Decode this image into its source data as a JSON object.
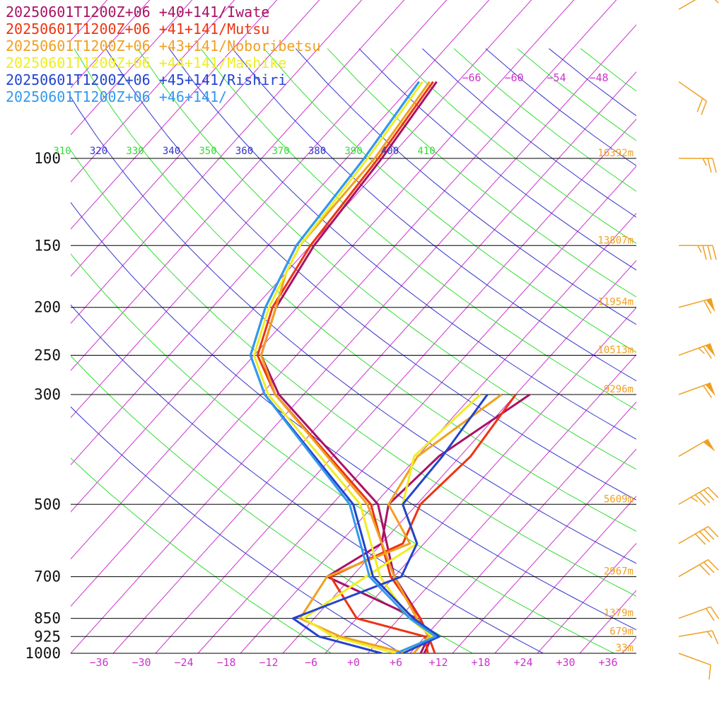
{
  "chart_data": {
    "type": "line",
    "diagram": "skew-T log-p",
    "legend_placement": "top-left",
    "x_axis": {
      "ticks": [
        -36,
        -30,
        -24,
        -18,
        -12,
        -6,
        0,
        6,
        12,
        18,
        24,
        30,
        36
      ],
      "tick_labels": [
        "−36",
        "−30",
        "−24",
        "−18",
        "−12",
        "−6",
        "+0",
        "+6",
        "+12",
        "+18",
        "+24",
        "+30",
        "+36"
      ],
      "range": [
        -40,
        40
      ]
    },
    "y_axis": {
      "scale": "log",
      "range": [
        1000,
        100
      ],
      "levels": [
        100,
        150,
        200,
        250,
        300,
        500,
        700,
        850,
        925,
        1000
      ],
      "level_labels": [
        "100",
        "150",
        "200",
        "250",
        "300",
        "500",
        "700",
        "850",
        "925",
        "1000"
      ]
    },
    "heights": [
      {
        "p": 100,
        "label": "16392m"
      },
      {
        "p": 150,
        "label": "13807m"
      },
      {
        "p": 200,
        "label": "11954m"
      },
      {
        "p": 250,
        "label": "10513m"
      },
      {
        "p": 300,
        "label": "9296m"
      },
      {
        "p": 500,
        "label": "5609m"
      },
      {
        "p": 700,
        "label": "2967m"
      },
      {
        "p": 850,
        "label": "1379m"
      },
      {
        "p": 925,
        "label": "679m"
      },
      {
        "p": 1000,
        "label": "33m"
      }
    ],
    "upper_isotherm_labels": [
      "−66",
      "−60",
      "−54",
      "−48"
    ],
    "theta_labels": [
      {
        "value": 310,
        "label": "310",
        "color": "#33dd33"
      },
      {
        "value": 320,
        "label": "320",
        "color": "#3333cc"
      },
      {
        "value": 330,
        "label": "330",
        "color": "#33dd33"
      },
      {
        "value": 340,
        "label": "340",
        "color": "#3333cc"
      },
      {
        "value": 350,
        "label": "350",
        "color": "#33dd33"
      },
      {
        "value": 360,
        "label": "360",
        "color": "#3333cc"
      },
      {
        "value": 370,
        "label": "370",
        "color": "#33dd33"
      },
      {
        "value": 380,
        "label": "380",
        "color": "#3333cc"
      },
      {
        "value": 390,
        "label": "390",
        "color": "#33dd33"
      },
      {
        "value": 400,
        "label": "400",
        "color": "#3333cc"
      },
      {
        "value": 410,
        "label": "410",
        "color": "#33dd33"
      }
    ],
    "series": [
      {
        "name": "20250601T1200Z+06 +40+141/Iwate",
        "color": "#aa1166",
        "temperature": [
          [
            1000,
            9.5
          ],
          [
            925,
            8.5
          ],
          [
            850,
            5.0
          ],
          [
            700,
            -4.0
          ],
          [
            500,
            -15.5
          ],
          [
            300,
            -43.5
          ],
          [
            250,
            -51.0
          ],
          [
            200,
            -55.0
          ],
          [
            150,
            -57.5
          ],
          [
            100,
            -59.0
          ],
          [
            70,
            -61.0
          ]
        ],
        "dewpoint": [
          [
            1000,
            10.0
          ],
          [
            925,
            9.0
          ],
          [
            850,
            4.5
          ],
          [
            700,
            -13.5
          ],
          [
            600,
            -10.0
          ],
          [
            500,
            -14.0
          ],
          [
            400,
            -13.0
          ],
          [
            300,
            -8.0
          ]
        ]
      },
      {
        "name": "20250601T1200Z+06 +41+141/Mutsu",
        "color": "#ee3311",
        "temperature": [
          [
            1000,
            11.5
          ],
          [
            925,
            8.5
          ],
          [
            850,
            5.0
          ],
          [
            700,
            -4.5
          ],
          [
            500,
            -16.5
          ],
          [
            300,
            -44.0
          ],
          [
            250,
            -51.5
          ],
          [
            200,
            -55.5
          ],
          [
            150,
            -58.0
          ],
          [
            100,
            -59.5
          ],
          [
            70,
            -61.5
          ]
        ],
        "dewpoint": [
          [
            1000,
            10.5
          ],
          [
            925,
            8.0
          ],
          [
            850,
            -4.0
          ],
          [
            700,
            -13.0
          ],
          [
            600,
            -7.0
          ],
          [
            500,
            -9.5
          ],
          [
            400,
            -8.5
          ],
          [
            300,
            -10.0
          ]
        ]
      },
      {
        "name": "20250601T1200Z+06 +43+141/Noboribetsu",
        "color": "#f0a020",
        "temperature": [
          [
            1000,
            8.5
          ],
          [
            925,
            8.5
          ],
          [
            850,
            4.5
          ],
          [
            700,
            -4.0
          ],
          [
            500,
            -17.0
          ],
          [
            300,
            -44.0
          ],
          [
            250,
            -51.0
          ],
          [
            200,
            -55.0
          ],
          [
            170,
            -58.0
          ],
          [
            150,
            -59.5
          ],
          [
            100,
            -60.0
          ],
          [
            70,
            -62.0
          ]
        ],
        "dewpoint": [
          [
            1000,
            7.5
          ],
          [
            925,
            -4.0
          ],
          [
            850,
            -12.0
          ],
          [
            700,
            -13.5
          ],
          [
            600,
            -6.0
          ],
          [
            500,
            -14.0
          ],
          [
            400,
            -16.0
          ],
          [
            300,
            -12.0
          ]
        ]
      },
      {
        "name": "20250601T1200Z+06 +44+141/Mashike",
        "color": "#eeee22",
        "temperature": [
          [
            1000,
            7.0
          ],
          [
            925,
            9.0
          ],
          [
            850,
            3.5
          ],
          [
            700,
            -6.0
          ],
          [
            500,
            -18.0
          ],
          [
            300,
            -45.0
          ],
          [
            250,
            -52.0
          ],
          [
            200,
            -56.0
          ],
          [
            150,
            -59.5
          ],
          [
            100,
            -61.0
          ],
          [
            70,
            -63.0
          ]
        ],
        "dewpoint": [
          [
            1000,
            6.0
          ],
          [
            925,
            -5.0
          ],
          [
            850,
            -11.5
          ],
          [
            700,
            -8.0
          ],
          [
            600,
            -5.0
          ],
          [
            500,
            -12.0
          ],
          [
            400,
            -16.5
          ],
          [
            300,
            -15.0
          ]
        ]
      },
      {
        "name": "20250601T1200Z+06 +45+141/Rishiri",
        "color": "#2244cc",
        "temperature": [
          [
            1000,
            7.0
          ],
          [
            925,
            10.0
          ],
          [
            850,
            4.0
          ],
          [
            700,
            -7.0
          ],
          [
            500,
            -19.0
          ],
          [
            300,
            -45.5
          ],
          [
            250,
            -52.5
          ],
          [
            200,
            -56.5
          ],
          [
            150,
            -60.0
          ],
          [
            100,
            -61.5
          ],
          [
            70,
            -63.5
          ]
        ],
        "dewpoint": [
          [
            1000,
            4.0
          ],
          [
            925,
            -7.0
          ],
          [
            850,
            -13.0
          ],
          [
            700,
            -3.0
          ],
          [
            600,
            -5.0
          ],
          [
            500,
            -12.0
          ],
          [
            400,
            -12.5
          ],
          [
            300,
            -14.0
          ]
        ]
      },
      {
        "name": "20250601T1200Z+06 +46+141/",
        "color": "#3399ee",
        "temperature": [
          [
            1000,
            6.0
          ],
          [
            925,
            9.5
          ],
          [
            850,
            3.5
          ],
          [
            700,
            -7.5
          ],
          [
            500,
            -19.5
          ],
          [
            300,
            -45.5
          ],
          [
            250,
            -52.5
          ],
          [
            200,
            -56.5
          ],
          [
            150,
            -60.0
          ],
          [
            100,
            -61.5
          ],
          [
            70,
            -63.5
          ]
        ],
        "dewpoint": []
      }
    ],
    "wind_barbs": [
      {
        "p": 1000,
        "dir": 290,
        "spd": 10
      },
      {
        "p": 925,
        "dir": 260,
        "spd": 15
      },
      {
        "p": 850,
        "dir": 250,
        "spd": 20
      },
      {
        "p": 700,
        "dir": 240,
        "spd": 30
      },
      {
        "p": 600,
        "dir": 240,
        "spd": 40
      },
      {
        "p": 500,
        "dir": 240,
        "spd": 45
      },
      {
        "p": 400,
        "dir": 240,
        "spd": 50
      },
      {
        "p": 300,
        "dir": 250,
        "spd": 60
      },
      {
        "p": 250,
        "dir": 250,
        "spd": 65
      },
      {
        "p": 200,
        "dir": 255,
        "spd": 60
      },
      {
        "p": 150,
        "dir": 270,
        "spd": 35
      },
      {
        "p": 100,
        "dir": 270,
        "spd": 25
      },
      {
        "p": 70,
        "dir": 305,
        "spd": 20
      },
      {
        "p": 50,
        "dir": 240,
        "spd": 10
      }
    ],
    "colors": {
      "isotherm": "#cc33cc",
      "dry_adiabat": "#33dd33",
      "theta_alt": "#3333cc",
      "pressure_line": "#000000",
      "height_label": "#f0a020",
      "wind_barb": "#f0a020"
    }
  }
}
